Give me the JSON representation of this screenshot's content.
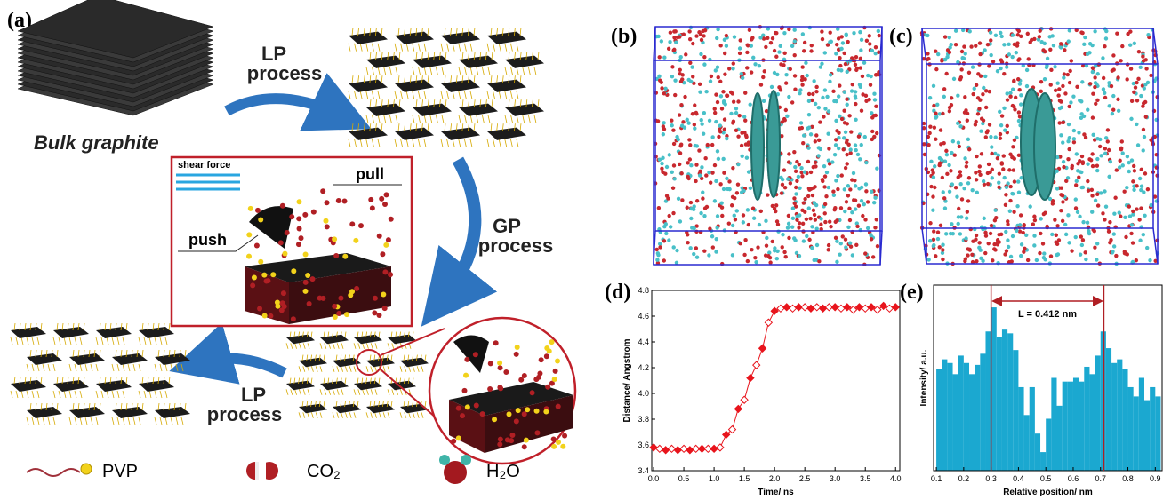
{
  "panel_labels": [
    "(a)",
    "(b)",
    "(c)",
    "(d)",
    "(e)"
  ],
  "diagram": {
    "lp_process_top": [
      "LP",
      "process"
    ],
    "bulk_graphite": "Bulk graphite",
    "shear_force": "shear force",
    "pull": "pull",
    "push": "push",
    "gp_process": [
      "GP",
      "process"
    ],
    "lp_process_bottom": [
      "LP",
      "process"
    ],
    "legend": [
      "PVP",
      "CO₂",
      "H₂O"
    ]
  },
  "chart_data": [
    {
      "type": "line",
      "x_label": "Time/ ns",
      "y_label": "Distance/ Angstrom",
      "color": "#e8141c",
      "marker": "diamond",
      "x": [
        0,
        0.1,
        0.2,
        0.3,
        0.4,
        0.5,
        0.6,
        0.7,
        0.8,
        0.9,
        1.0,
        1.1,
        1.2,
        1.3,
        1.4,
        1.5,
        1.6,
        1.7,
        1.8,
        1.9,
        2.0,
        2.1,
        2.2,
        2.3,
        2.4,
        2.5,
        2.6,
        2.7,
        2.8,
        2.9,
        3.0,
        3.1,
        3.2,
        3.3,
        3.4,
        3.5,
        3.6,
        3.7,
        3.8,
        3.9,
        4.0
      ],
      "values": [
        3.58,
        3.57,
        3.56,
        3.57,
        3.56,
        3.57,
        3.56,
        3.57,
        3.57,
        3.57,
        3.57,
        3.58,
        3.68,
        3.72,
        3.88,
        3.95,
        4.12,
        4.22,
        4.35,
        4.55,
        4.64,
        4.66,
        4.67,
        4.66,
        4.67,
        4.67,
        4.66,
        4.67,
        4.66,
        4.67,
        4.67,
        4.66,
        4.67,
        4.65,
        4.67,
        4.66,
        4.67,
        4.65,
        4.68,
        4.66,
        4.67
      ],
      "xlim": [
        -0.03,
        4.07
      ],
      "ylim": [
        3.4,
        4.8
      ],
      "xticks": [
        {
          "value": 0,
          "label": "0.0"
        },
        0.5,
        {
          "value": 1,
          "label": "1.0"
        },
        1.5,
        {
          "value": 2,
          "label": "2.0"
        },
        2.5,
        {
          "value": 3,
          "label": "3.0"
        },
        3.5,
        {
          "value": 4,
          "label": "4.0"
        }
      ],
      "yticks": [
        3.4,
        3.6,
        3.8,
        {
          "value": 4,
          "label": "4.0"
        },
        4.2,
        4.4,
        4.6,
        4.8
      ]
    },
    {
      "type": "histogram",
      "x_label": "Relative position/ nm",
      "y_label": "Intensity/ a.u.",
      "color": "#1ba8d0",
      "bins": [
        0.1,
        0.12,
        0.14,
        0.16,
        0.18,
        0.2,
        0.22,
        0.24,
        0.26,
        0.28,
        0.3,
        0.32,
        0.34,
        0.36,
        0.38,
        0.4,
        0.42,
        0.44,
        0.46,
        0.48,
        0.5,
        0.52,
        0.54,
        0.56,
        0.58,
        0.6,
        0.62,
        0.64,
        0.66,
        0.68,
        0.7,
        0.72,
        0.74,
        0.76,
        0.78,
        0.8,
        0.82,
        0.84,
        0.86,
        0.88,
        0.9,
        0.92
      ],
      "values": [
        55,
        60,
        58,
        52,
        62,
        58,
        52,
        57,
        63,
        75,
        88,
        72,
        76,
        74,
        65,
        45,
        30,
        45,
        20,
        10,
        28,
        50,
        35,
        48,
        48,
        50,
        48,
        56,
        52,
        62,
        75,
        66,
        58,
        60,
        55,
        45,
        40,
        50,
        38,
        45,
        40
      ],
      "xlim": [
        0.09,
        0.925
      ],
      "ylim": [
        0,
        100
      ],
      "xticks": [
        0.1,
        0.2,
        0.3,
        0.4,
        0.5,
        0.6,
        0.7,
        0.8,
        0.9
      ],
      "reference_lines": [
        0.3,
        0.712
      ],
      "reference_color": "#b01f24",
      "annotation": "L = 0.412 nm"
    }
  ]
}
